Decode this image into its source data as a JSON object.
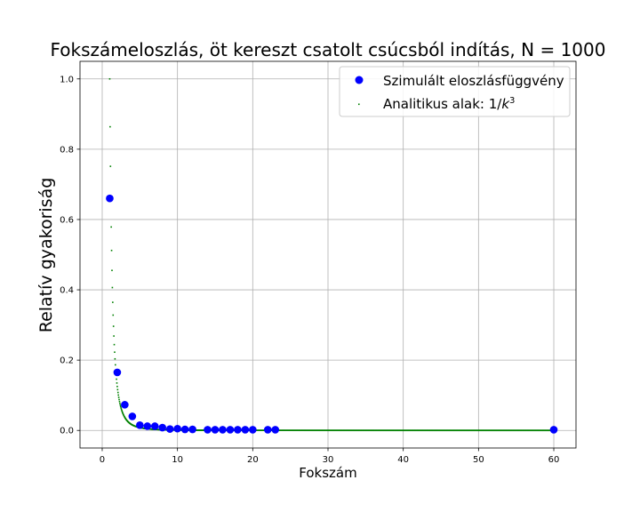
{
  "chart_data": {
    "type": "scatter",
    "title": "Fokszámeloszlás, öt kereszt csatolt csúcsból indítás, N = 1000",
    "xlabel": "Fokszám",
    "ylabel": "Relatív gyakoriság",
    "xlim": [
      -2.95,
      62.95
    ],
    "ylim": [
      -0.05,
      1.05
    ],
    "xticks": [
      0,
      10,
      20,
      30,
      40,
      50,
      60
    ],
    "yticks": [
      0.0,
      0.2,
      0.4,
      0.6,
      0.8,
      1.0
    ],
    "xtick_labels": [
      "0",
      "10",
      "20",
      "30",
      "40",
      "50",
      "60"
    ],
    "ytick_labels": [
      "0.0",
      "0.2",
      "0.4",
      "0.6",
      "0.8",
      "1.0"
    ],
    "grid": true,
    "legend_position": "top-right",
    "series": [
      {
        "name": "Szimulált eloszlásfüggvény",
        "color": "#0000ff",
        "marker": "circle",
        "x": [
          1,
          2,
          3,
          4,
          5,
          6,
          7,
          8,
          9,
          10,
          11,
          12,
          14,
          15,
          16,
          17,
          18,
          19,
          20,
          22,
          23,
          60
        ],
        "y": [
          0.66,
          0.165,
          0.073,
          0.04,
          0.015,
          0.012,
          0.012,
          0.008,
          0.004,
          0.005,
          0.003,
          0.003,
          0.002,
          0.002,
          0.002,
          0.002,
          0.002,
          0.002,
          0.002,
          0.002,
          0.002,
          0.002
        ]
      },
      {
        "name": "Analitikus alak: 1/k³",
        "color": "#008000",
        "marker": "pixel",
        "function": "1/k^3",
        "x_range": [
          1,
          60
        ],
        "x_step": 0.05
      }
    ]
  }
}
